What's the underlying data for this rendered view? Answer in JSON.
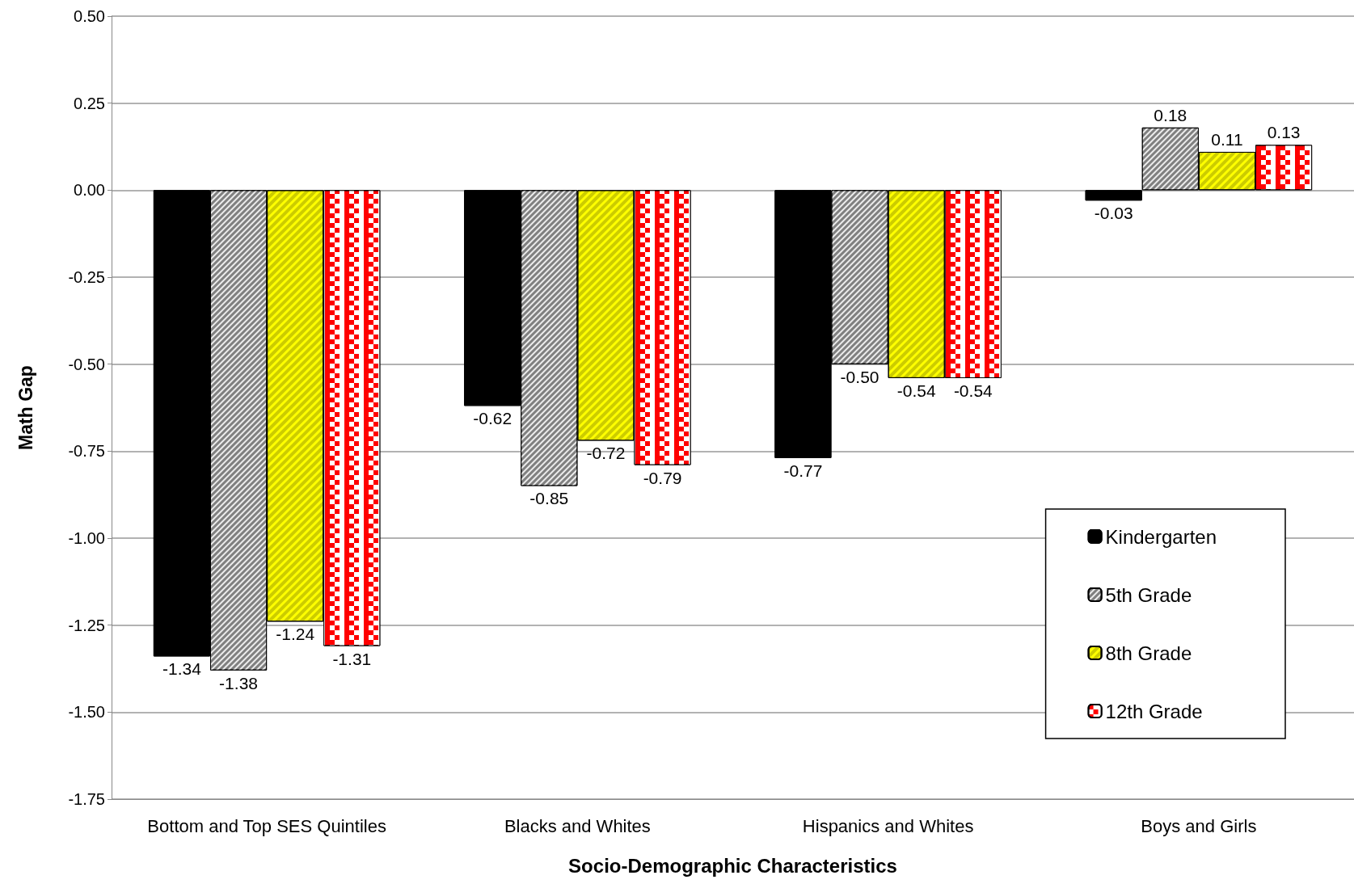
{
  "chart_data": {
    "type": "bar",
    "xlabel": "Socio-Demographic Characteristics",
    "ylabel": "Math Gap",
    "categories": [
      "Bottom and Top SES Quintiles",
      "Blacks and Whites",
      "Hispanics and Whites",
      "Boys and Girls"
    ],
    "series": [
      {
        "name": "Kindergarten",
        "color": "#000000",
        "values": [
          -1.34,
          -0.62,
          -0.77,
          -0.03
        ],
        "value_labels": [
          "-1.34",
          "-0.62",
          "-0.77",
          "-0.03"
        ]
      },
      {
        "name": "5th Grade",
        "color": "#808080",
        "values": [
          -1.38,
          -0.85,
          -0.5,
          0.18
        ],
        "value_labels": [
          "-1.38",
          "-0.85",
          "-0.50",
          "0.18"
        ]
      },
      {
        "name": "8th Grade",
        "color": "#ffff00",
        "values": [
          -1.24,
          -0.72,
          -0.54,
          0.11
        ],
        "value_labels": [
          "-1.24",
          "-0.72",
          "-0.54",
          "0.11"
        ]
      },
      {
        "name": "12th Grade",
        "color": "#ff0000",
        "values": [
          -1.31,
          -0.79,
          -0.54,
          0.13
        ],
        "value_labels": [
          "-1.31",
          "-0.79",
          "-0.54",
          "0.13"
        ]
      }
    ],
    "ylim": [
      -1.75,
      0.5
    ],
    "yticks": [
      {
        "value": -1.75,
        "label": "-1.75"
      },
      {
        "value": -1.5,
        "label": "-1.50"
      },
      {
        "value": -1.25,
        "label": "-1.25"
      },
      {
        "value": -1,
        "label": "-1.00"
      },
      {
        "value": -0.75,
        "label": "-0.75"
      },
      {
        "value": -0.5,
        "label": "-0.50"
      },
      {
        "value": -0.25,
        "label": "-0.25"
      },
      {
        "value": 0,
        "label": "0.00"
      },
      {
        "value": 0.25,
        "label": "0.25"
      },
      {
        "value": 0.5,
        "label": "0.50"
      }
    ],
    "grid": "y",
    "legend": "bottom right"
  }
}
